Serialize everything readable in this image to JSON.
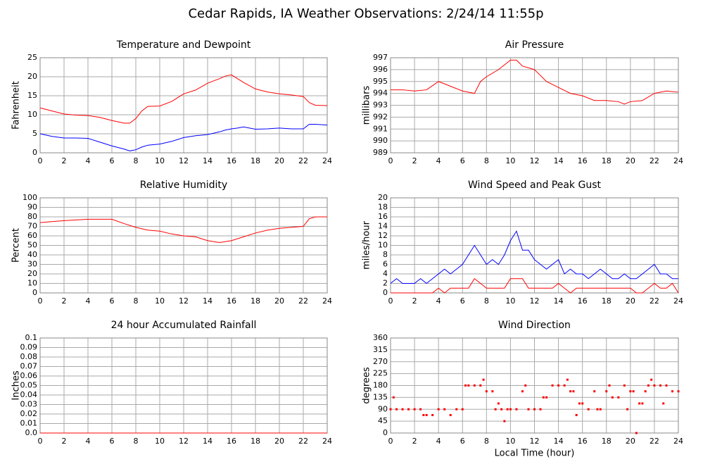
{
  "title": "Cedar Rapids, IA Weather Observations: 2/24/14 11:55p",
  "chart_data": [
    {
      "type": "line",
      "title": "Temperature and Dewpoint",
      "y_label": "Fahrenheit",
      "x": [
        0,
        1,
        2,
        3,
        4,
        5,
        6,
        7,
        7.5,
        8,
        8.5,
        9,
        10,
        11,
        12,
        13,
        14,
        15,
        15.5,
        16,
        16.5,
        17,
        18,
        19,
        20,
        21,
        22,
        22.5,
        23,
        24
      ],
      "series": [
        {
          "color": "#ff0000",
          "values": [
            11.8,
            11,
            10.2,
            9.9,
            9.8,
            9.3,
            8.5,
            7.8,
            7.8,
            9,
            11,
            12.2,
            12.3,
            13.5,
            15.5,
            16.5,
            18.3,
            19.5,
            20.2,
            20.5,
            19.5,
            18.5,
            16.8,
            16,
            15.5,
            15.2,
            14.8,
            13.2,
            12.5,
            12.4
          ]
        },
        {
          "color": "#0000ff",
          "values": [
            5,
            4.3,
            3.9,
            3.9,
            3.8,
            2.8,
            1.8,
            1,
            0.5,
            0.8,
            1.5,
            2,
            2.3,
            3,
            4,
            4.5,
            4.8,
            5.5,
            6,
            6.3,
            6.5,
            6.8,
            6.2,
            6.3,
            6.5,
            6.3,
            6.3,
            7.5,
            7.5,
            7.3
          ]
        }
      ],
      "xlim": [
        0,
        24
      ],
      "xticks": [
        0,
        2,
        4,
        6,
        8,
        10,
        12,
        14,
        16,
        18,
        20,
        22,
        24
      ],
      "ylim": [
        0,
        25
      ],
      "yticks": [
        0,
        5,
        10,
        15,
        20,
        25
      ],
      "grid": true
    },
    {
      "type": "line",
      "title": "Air Pressure",
      "y_label": "millibars",
      "x": [
        0,
        1,
        2,
        3,
        4,
        5,
        6,
        7,
        7.5,
        8,
        9,
        10,
        10.5,
        11,
        12,
        13,
        14,
        15,
        16,
        17,
        18,
        19,
        19.5,
        20,
        21,
        22,
        23,
        24
      ],
      "series": [
        {
          "color": "#ff0000",
          "values": [
            994.3,
            994.3,
            994.2,
            994.3,
            995,
            994.6,
            994.2,
            994,
            995,
            995.4,
            996,
            996.8,
            996.8,
            996.3,
            996,
            995,
            994.5,
            994,
            993.8,
            993.4,
            993.4,
            993.3,
            993.1,
            993.3,
            993.4,
            994,
            994.2,
            994.1
          ]
        }
      ],
      "xlim": [
        0,
        24
      ],
      "xticks": [
        0,
        2,
        4,
        6,
        8,
        10,
        12,
        14,
        16,
        18,
        20,
        22,
        24
      ],
      "ylim": [
        989,
        997
      ],
      "yticks": [
        989,
        990,
        991,
        992,
        993,
        994,
        995,
        996,
        997
      ],
      "grid": true
    },
    {
      "type": "line",
      "title": "Relative Humidity",
      "y_label": "Percent",
      "x": [
        0,
        2,
        4,
        6,
        7,
        8,
        9,
        10,
        11,
        12,
        13,
        14,
        15,
        16,
        17,
        18,
        19,
        20,
        21,
        22,
        22.5,
        23,
        24
      ],
      "series": [
        {
          "color": "#ff0000",
          "values": [
            74,
            76,
            77.5,
            77.5,
            73,
            69,
            66,
            65,
            62,
            60,
            59,
            55,
            53,
            55,
            59,
            63,
            66,
            68,
            69,
            70,
            78,
            80,
            80
          ]
        }
      ],
      "xlim": [
        0,
        24
      ],
      "xticks": [
        0,
        2,
        4,
        6,
        8,
        10,
        12,
        14,
        16,
        18,
        20,
        22,
        24
      ],
      "ylim": [
        0,
        100
      ],
      "yticks": [
        0,
        10,
        20,
        30,
        40,
        50,
        60,
        70,
        80,
        90,
        100
      ],
      "grid": true
    },
    {
      "type": "line",
      "title": "Wind Speed and Peak Gust",
      "y_label": "miles/hour",
      "x": [
        0,
        0.5,
        1,
        1.5,
        2,
        2.5,
        3,
        3.5,
        4,
        4.5,
        5,
        5.5,
        6,
        6.5,
        7,
        7.5,
        8,
        8.5,
        9,
        9.5,
        10,
        10.5,
        11,
        11.5,
        12,
        12.5,
        13,
        13.5,
        14,
        14.5,
        15,
        15.5,
        16,
        16.5,
        17,
        17.5,
        18,
        18.5,
        19,
        19.5,
        20,
        20.5,
        21,
        21.5,
        22,
        22.5,
        23,
        23.5,
        24
      ],
      "series": [
        {
          "color": "#0000ff",
          "values": [
            2,
            3,
            2,
            2,
            2,
            3,
            2,
            3,
            4,
            5,
            4,
            5,
            6,
            8,
            10,
            8,
            6,
            7,
            6,
            8,
            11,
            13,
            9,
            9,
            7,
            6,
            5,
            6,
            7,
            4,
            5,
            4,
            4,
            3,
            4,
            5,
            4,
            3,
            3,
            4,
            3,
            3,
            4,
            5,
            6,
            4,
            4,
            3,
            3
          ]
        },
        {
          "color": "#ff0000",
          "values": [
            0,
            0,
            0,
            0,
            0,
            0,
            0,
            0,
            1,
            0,
            1,
            1,
            1,
            1,
            3,
            2,
            1,
            1,
            1,
            1,
            3,
            3,
            3,
            1,
            1,
            1,
            1,
            1,
            2,
            1,
            0,
            1,
            1,
            1,
            1,
            1,
            1,
            1,
            1,
            1,
            1,
            0,
            0,
            1,
            2,
            1,
            1,
            2,
            0
          ]
        }
      ],
      "xlim": [
        0,
        24
      ],
      "xticks": [
        0,
        2,
        4,
        6,
        8,
        10,
        12,
        14,
        16,
        18,
        20,
        22,
        24
      ],
      "ylim": [
        0,
        20
      ],
      "yticks": [
        0,
        2,
        4,
        6,
        8,
        10,
        12,
        14,
        16,
        18,
        20
      ],
      "grid": true
    },
    {
      "type": "line",
      "title": "24 hour Accumulated Rainfall",
      "y_label": "Inches",
      "x": [
        0,
        24
      ],
      "series": [
        {
          "color": "#ff0000",
          "values": [
            0,
            0
          ]
        }
      ],
      "xlim": [
        0,
        24
      ],
      "xticks": [
        0,
        2,
        4,
        6,
        8,
        10,
        12,
        14,
        16,
        18,
        20,
        22,
        24
      ],
      "ylim": [
        0,
        0.1
      ],
      "yticks": [
        {
          "value": 0,
          "label": "0.0"
        },
        0.01,
        0.02,
        0.03,
        0.04,
        0.05,
        0.06,
        0.07,
        0.08,
        0.09,
        0.1
      ],
      "grid": true
    },
    {
      "type": "scatter",
      "title": "Wind Direction",
      "y_label": "degrees",
      "x_label": "Local Time (hour)",
      "x": [
        0,
        0.25,
        0.5,
        1,
        1.5,
        2,
        2.5,
        2.75,
        3,
        3.5,
        4,
        4.5,
        5,
        5.5,
        6,
        6.25,
        6.5,
        7,
        7.5,
        7.75,
        8,
        8.5,
        8.75,
        9,
        9.25,
        9.5,
        9.75,
        10,
        10.5,
        11,
        11.25,
        11.5,
        12,
        12.5,
        12.75,
        13,
        13.5,
        14,
        14.5,
        14.75,
        15,
        15.25,
        15.5,
        15.75,
        16,
        16.5,
        17,
        17.25,
        17.5,
        18,
        18.25,
        18.5,
        19,
        19.5,
        19.75,
        20,
        20.25,
        20.5,
        20.75,
        21,
        21.25,
        21.5,
        21.75,
        22,
        22.5,
        22.75,
        23,
        23.5,
        24
      ],
      "series": [
        {
          "color": "#ff0000",
          "values": [
            90,
            135,
            90,
            90,
            90,
            90,
            90,
            68,
            68,
            68,
            90,
            90,
            68,
            90,
            90,
            180,
            180,
            180,
            180,
            202,
            158,
            158,
            90,
            112,
            90,
            45,
            90,
            90,
            90,
            158,
            180,
            90,
            90,
            90,
            135,
            135,
            180,
            180,
            180,
            202,
            158,
            158,
            68,
            112,
            112,
            90,
            158,
            90,
            90,
            158,
            180,
            135,
            135,
            180,
            90,
            158,
            158,
            0,
            112,
            112,
            158,
            180,
            202,
            180,
            180,
            112,
            180,
            158,
            158
          ]
        }
      ],
      "xlim": [
        0,
        24
      ],
      "xticks": [
        0,
        2,
        4,
        6,
        8,
        10,
        12,
        14,
        16,
        18,
        20,
        22,
        24
      ],
      "ylim": [
        0,
        360
      ],
      "yticks": [
        0,
        45,
        90,
        135,
        180,
        225,
        270,
        315,
        360
      ],
      "grid": true
    }
  ]
}
